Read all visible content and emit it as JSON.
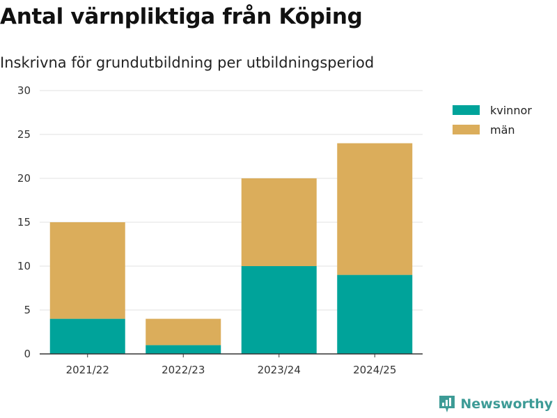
{
  "chart_data": {
    "type": "bar",
    "stacked": true,
    "title": "Antal värnpliktiga från Köping",
    "subtitle": "Inskrivna för grundutbildning per utbildningsperiod",
    "categories": [
      "2021/22",
      "2022/23",
      "2023/24",
      "2024/25"
    ],
    "series": [
      {
        "name": "kvinnor",
        "color": "#00a39a",
        "values": [
          4,
          1,
          10,
          9
        ]
      },
      {
        "name": "män",
        "color": "#dbad5b",
        "values": [
          11,
          3,
          10,
          15
        ]
      }
    ],
    "ylim": [
      0,
      30
    ],
    "yticks": [
      0,
      5,
      10,
      15,
      20,
      25,
      30
    ],
    "ytick_labels": [
      "0",
      "5",
      "10",
      "15",
      "20",
      "25",
      "30"
    ],
    "xlabel": "",
    "ylabel": "",
    "grid": true,
    "legend_position": "top-right"
  },
  "branding": {
    "name": "Newsworthy",
    "icon": "newsworthy-logo-icon",
    "color": "#3d9b96"
  }
}
